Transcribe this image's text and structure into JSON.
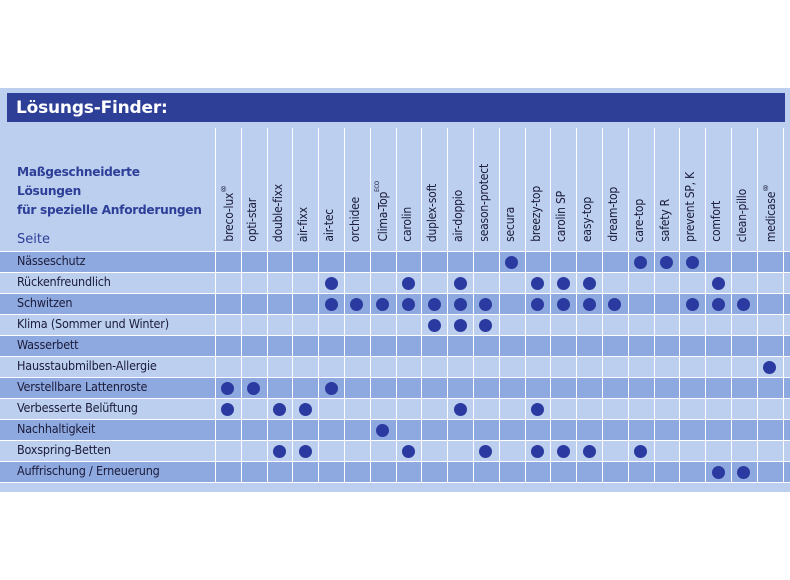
{
  "title": "Lösungs-Finder:",
  "subtitle": [
    "Maßgeschneiderte Lösungen",
    "für spezielle Anforderungen"
  ],
  "seite_label": "Seite",
  "colors": {
    "header": "#2e3f98",
    "panel": "#bccfee",
    "band": "#8ea9df",
    "dot": "#2b3aa0"
  },
  "columns": [
    {
      "name": "breco-lux",
      "sup": "®"
    },
    {
      "name": "opti-star",
      "sup": ""
    },
    {
      "name": "double-fixx",
      "sup": ""
    },
    {
      "name": "air-fixx",
      "sup": ""
    },
    {
      "name": "air-tec",
      "sup": ""
    },
    {
      "name": "orchidee",
      "sup": ""
    },
    {
      "name": "Clima-Top",
      "sup": "ECO"
    },
    {
      "name": "carolin",
      "sup": ""
    },
    {
      "name": "duplex-soft",
      "sup": ""
    },
    {
      "name": "air-doppio",
      "sup": ""
    },
    {
      "name": "season-protect",
      "sup": ""
    },
    {
      "name": "secura",
      "sup": ""
    },
    {
      "name": "breezy-top",
      "sup": ""
    },
    {
      "name": "carolin SP",
      "sup": ""
    },
    {
      "name": "easy-top",
      "sup": ""
    },
    {
      "name": "dream-top",
      "sup": ""
    },
    {
      "name": "care-top",
      "sup": ""
    },
    {
      "name": "safety R",
      "sup": ""
    },
    {
      "name": "prevent SP, K",
      "sup": ""
    },
    {
      "name": "comfort",
      "sup": ""
    },
    {
      "name": "clean-pillo",
      "sup": ""
    },
    {
      "name": "medicase",
      "sup": "®"
    }
  ],
  "rows": [
    {
      "label": "Nässeschutz",
      "marks": [
        11,
        16,
        17,
        18
      ]
    },
    {
      "label": "Rückenfreundlich",
      "marks": [
        4,
        7,
        9,
        12,
        13,
        14,
        19
      ]
    },
    {
      "label": "Schwitzen",
      "marks": [
        4,
        5,
        6,
        7,
        8,
        9,
        10,
        12,
        13,
        14,
        15,
        18,
        19,
        20
      ]
    },
    {
      "label": "Klima (Sommer und Winter)",
      "marks": [
        8,
        9,
        10
      ]
    },
    {
      "label": "Wasserbett",
      "marks": []
    },
    {
      "label": "Hausstaubmilben-Allergie",
      "marks": [
        21
      ]
    },
    {
      "label": "Verstellbare Lattenroste",
      "marks": [
        0,
        1,
        4
      ]
    },
    {
      "label": "Verbesserte Belüftung",
      "marks": [
        0,
        2,
        3,
        9,
        12
      ]
    },
    {
      "label": "Nachhaltigkeit",
      "marks": [
        6
      ]
    },
    {
      "label": "Boxspring-Betten",
      "marks": [
        2,
        3,
        7,
        10,
        12,
        13,
        14,
        16
      ]
    },
    {
      "label": "Auffrischung / Erneuerung",
      "marks": [
        19,
        20
      ]
    }
  ]
}
